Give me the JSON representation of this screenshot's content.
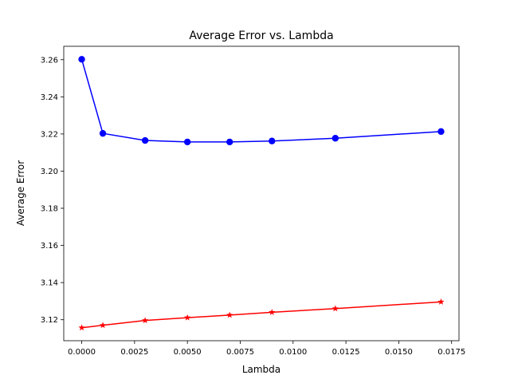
{
  "chart_data": {
    "type": "line",
    "title": "Average Error vs. Lambda",
    "xlabel": "Lambda",
    "ylabel": "Average Error",
    "xlim": [
      -0.00085,
      0.01785
    ],
    "ylim": [
      3.1087,
      3.2672
    ],
    "xticks": [
      0.0,
      0.0025,
      0.005,
      0.0075,
      0.01,
      0.0125,
      0.015,
      0.0175
    ],
    "xtick_labels": [
      "0.0000",
      "0.0025",
      "0.0050",
      "0.0075",
      "0.0100",
      "0.0125",
      "0.0150",
      "0.0175"
    ],
    "yticks": [
      3.12,
      3.14,
      3.16,
      3.18,
      3.2,
      3.22,
      3.24,
      3.26
    ],
    "ytick_labels": [
      "3.12",
      "3.14",
      "3.16",
      "3.18",
      "3.20",
      "3.22",
      "3.24",
      "3.26"
    ],
    "grid": false,
    "legend": "none",
    "x": [
      0.0,
      0.001,
      0.003,
      0.005,
      0.007,
      0.009,
      0.012,
      0.017
    ],
    "series": [
      {
        "color": "#0000ff",
        "marker": "circle",
        "values": [
          3.2602,
          3.2203,
          3.2165,
          3.2157,
          3.2157,
          3.2162,
          3.2177,
          3.2213
        ]
      },
      {
        "color": "#ff0000",
        "marker": "star",
        "values": [
          3.1157,
          3.117,
          3.1196,
          3.1211,
          3.1225,
          3.124,
          3.126,
          3.1296
        ]
      }
    ]
  }
}
